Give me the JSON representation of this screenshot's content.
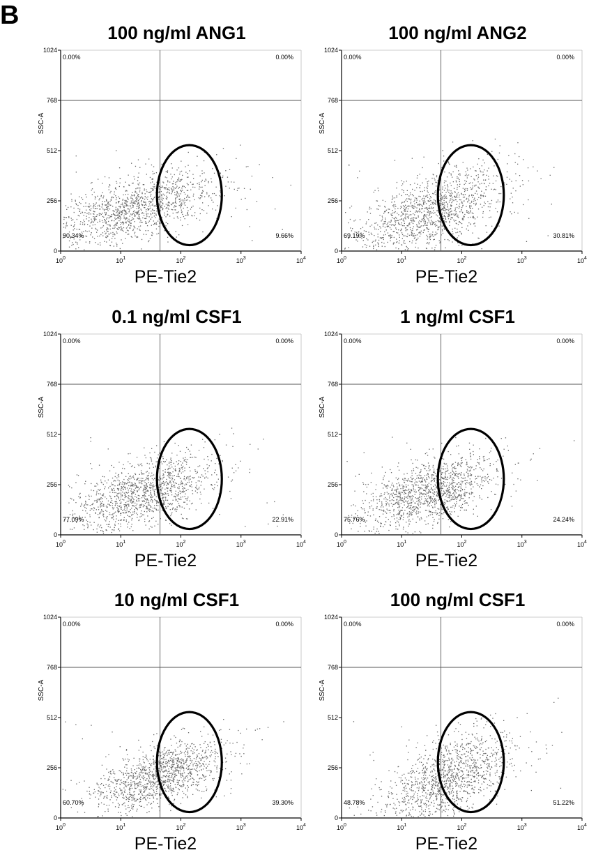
{
  "panel_label": "B",
  "chart_data": [
    {
      "type": "scatter",
      "title": "100 ng/ml ANG1",
      "xlabel": "PE-Tie2",
      "ylabel": "SSC-A",
      "x_scale": "log",
      "xlim": [
        1,
        10000
      ],
      "ylim": [
        0,
        1024
      ],
      "x_ticks": [
        "10^0",
        "10^1",
        "10^2",
        "10^3",
        "10^4"
      ],
      "y_ticks": [
        "0",
        "256",
        "512",
        "768",
        "1024"
      ],
      "quadrants": {
        "upper_left": "0.00%",
        "upper_right": "0.00%",
        "lower_left": "90.34%",
        "lower_right": "9.66%"
      },
      "gate_x": 45,
      "gate_y": 768,
      "cloud": {
        "x_center": 18,
        "y_center": 220,
        "upper_x": 300,
        "upper_y": 440
      },
      "ellipse": {
        "x_center": 140,
        "y_center": 290,
        "x_span": [
          40,
          480
        ],
        "y_span": [
          30,
          540
        ]
      },
      "colors": {
        "dots": "#666666",
        "axis": "#000000",
        "gate": "#555555",
        "ellipse": "#000000"
      }
    },
    {
      "type": "scatter",
      "title": "100 ng/ml ANG2",
      "xlabel": "PE-Tie2",
      "ylabel": "SSC-A",
      "x_scale": "log",
      "xlim": [
        1,
        10000
      ],
      "ylim": [
        0,
        1024
      ],
      "x_ticks": [
        "10^0",
        "10^1",
        "10^2",
        "10^3",
        "10^4"
      ],
      "y_ticks": [
        "0",
        "256",
        "512",
        "768",
        "1024"
      ],
      "quadrants": {
        "upper_left": "0.00%",
        "upper_right": "0.00%",
        "lower_left": "69.19%",
        "lower_right": "30.81%"
      },
      "gate_x": 45,
      "gate_y": 768,
      "cloud": {
        "x_center": 30,
        "y_center": 200,
        "upper_x": 400,
        "upper_y": 460
      },
      "ellipse": {
        "x_center": 150,
        "y_center": 290,
        "x_span": [
          40,
          500
        ],
        "y_span": [
          30,
          540
        ]
      },
      "colors": {
        "dots": "#666666",
        "axis": "#000000",
        "gate": "#555555",
        "ellipse": "#000000"
      }
    },
    {
      "type": "scatter",
      "title": "0.1 ng/ml CSF1",
      "xlabel": "PE-Tie2",
      "ylabel": "SSC-A",
      "x_scale": "log",
      "xlim": [
        1,
        10000
      ],
      "ylim": [
        0,
        1024
      ],
      "x_ticks": [
        "10^0",
        "10^1",
        "10^2",
        "10^3",
        "10^4"
      ],
      "y_ticks": [
        "0",
        "256",
        "512",
        "768",
        "1024"
      ],
      "quadrants": {
        "upper_left": "0.00%",
        "upper_right": "0.00%",
        "lower_left": "77.09%",
        "lower_right": "22.91%"
      },
      "gate_x": 45,
      "gate_y": 768,
      "cloud": {
        "x_center": 25,
        "y_center": 220,
        "upper_x": 300,
        "upper_y": 450
      },
      "ellipse": {
        "x_center": 140,
        "y_center": 290,
        "x_span": [
          40,
          480
        ],
        "y_span": [
          30,
          540
        ]
      },
      "colors": {
        "dots": "#666666",
        "axis": "#000000",
        "gate": "#555555",
        "ellipse": "#000000"
      }
    },
    {
      "type": "scatter",
      "title": "1 ng/ml CSF1",
      "xlabel": "PE-Tie2",
      "ylabel": "SSC-A",
      "x_scale": "log",
      "xlim": [
        1,
        10000
      ],
      "ylim": [
        0,
        1024
      ],
      "x_ticks": [
        "10^0",
        "10^1",
        "10^2",
        "10^3",
        "10^4"
      ],
      "y_ticks": [
        "0",
        "256",
        "512",
        "768",
        "1024"
      ],
      "quadrants": {
        "upper_left": "0.00%",
        "upper_right": "0.00%",
        "lower_left": "75.76%",
        "lower_right": "24.24%"
      },
      "gate_x": 45,
      "gate_y": 768,
      "cloud": {
        "x_center": 28,
        "y_center": 220,
        "upper_x": 300,
        "upper_y": 440
      },
      "ellipse": {
        "x_center": 150,
        "y_center": 290,
        "x_span": [
          40,
          500
        ],
        "y_span": [
          30,
          540
        ]
      },
      "colors": {
        "dots": "#666666",
        "axis": "#000000",
        "gate": "#555555",
        "ellipse": "#000000"
      }
    },
    {
      "type": "scatter",
      "title": "10 ng/ml CSF1",
      "xlabel": "PE-Tie2",
      "ylabel": "SSC-A",
      "x_scale": "log",
      "xlim": [
        1,
        10000
      ],
      "ylim": [
        0,
        1024
      ],
      "x_ticks": [
        "10^0",
        "10^1",
        "10^2",
        "10^3",
        "10^4"
      ],
      "y_ticks": [
        "0",
        "256",
        "512",
        "768",
        "1024"
      ],
      "quadrants": {
        "upper_left": "0.00%",
        "upper_right": "0.00%",
        "lower_left": "60.70%",
        "lower_right": "39.30%"
      },
      "gate_x": 45,
      "gate_y": 768,
      "cloud": {
        "x_center": 45,
        "y_center": 220,
        "upper_x": 450,
        "upper_y": 420
      },
      "ellipse": {
        "x_center": 140,
        "y_center": 290,
        "x_span": [
          40,
          480
        ],
        "y_span": [
          30,
          540
        ]
      },
      "colors": {
        "dots": "#666666",
        "axis": "#000000",
        "gate": "#555555",
        "ellipse": "#000000"
      }
    },
    {
      "type": "scatter",
      "title": "100 ng/ml CSF1",
      "xlabel": "PE-Tie2",
      "ylabel": "SSC-A",
      "x_scale": "log",
      "xlim": [
        1,
        10000
      ],
      "ylim": [
        0,
        1024
      ],
      "x_ticks": [
        "10^0",
        "10^1",
        "10^2",
        "10^3",
        "10^4"
      ],
      "y_ticks": [
        "0",
        "256",
        "512",
        "768",
        "1024"
      ],
      "quadrants": {
        "upper_left": "0.00%",
        "upper_right": "0.00%",
        "lower_left": "48.78%",
        "lower_right": "51.22%"
      },
      "gate_x": 45,
      "gate_y": 768,
      "cloud": {
        "x_center": 55,
        "y_center": 200,
        "upper_x": 500,
        "upper_y": 470
      },
      "ellipse": {
        "x_center": 150,
        "y_center": 290,
        "x_span": [
          40,
          500
        ],
        "y_span": [
          30,
          540
        ]
      },
      "colors": {
        "dots": "#666666",
        "axis": "#000000",
        "gate": "#555555",
        "ellipse": "#000000"
      }
    }
  ]
}
